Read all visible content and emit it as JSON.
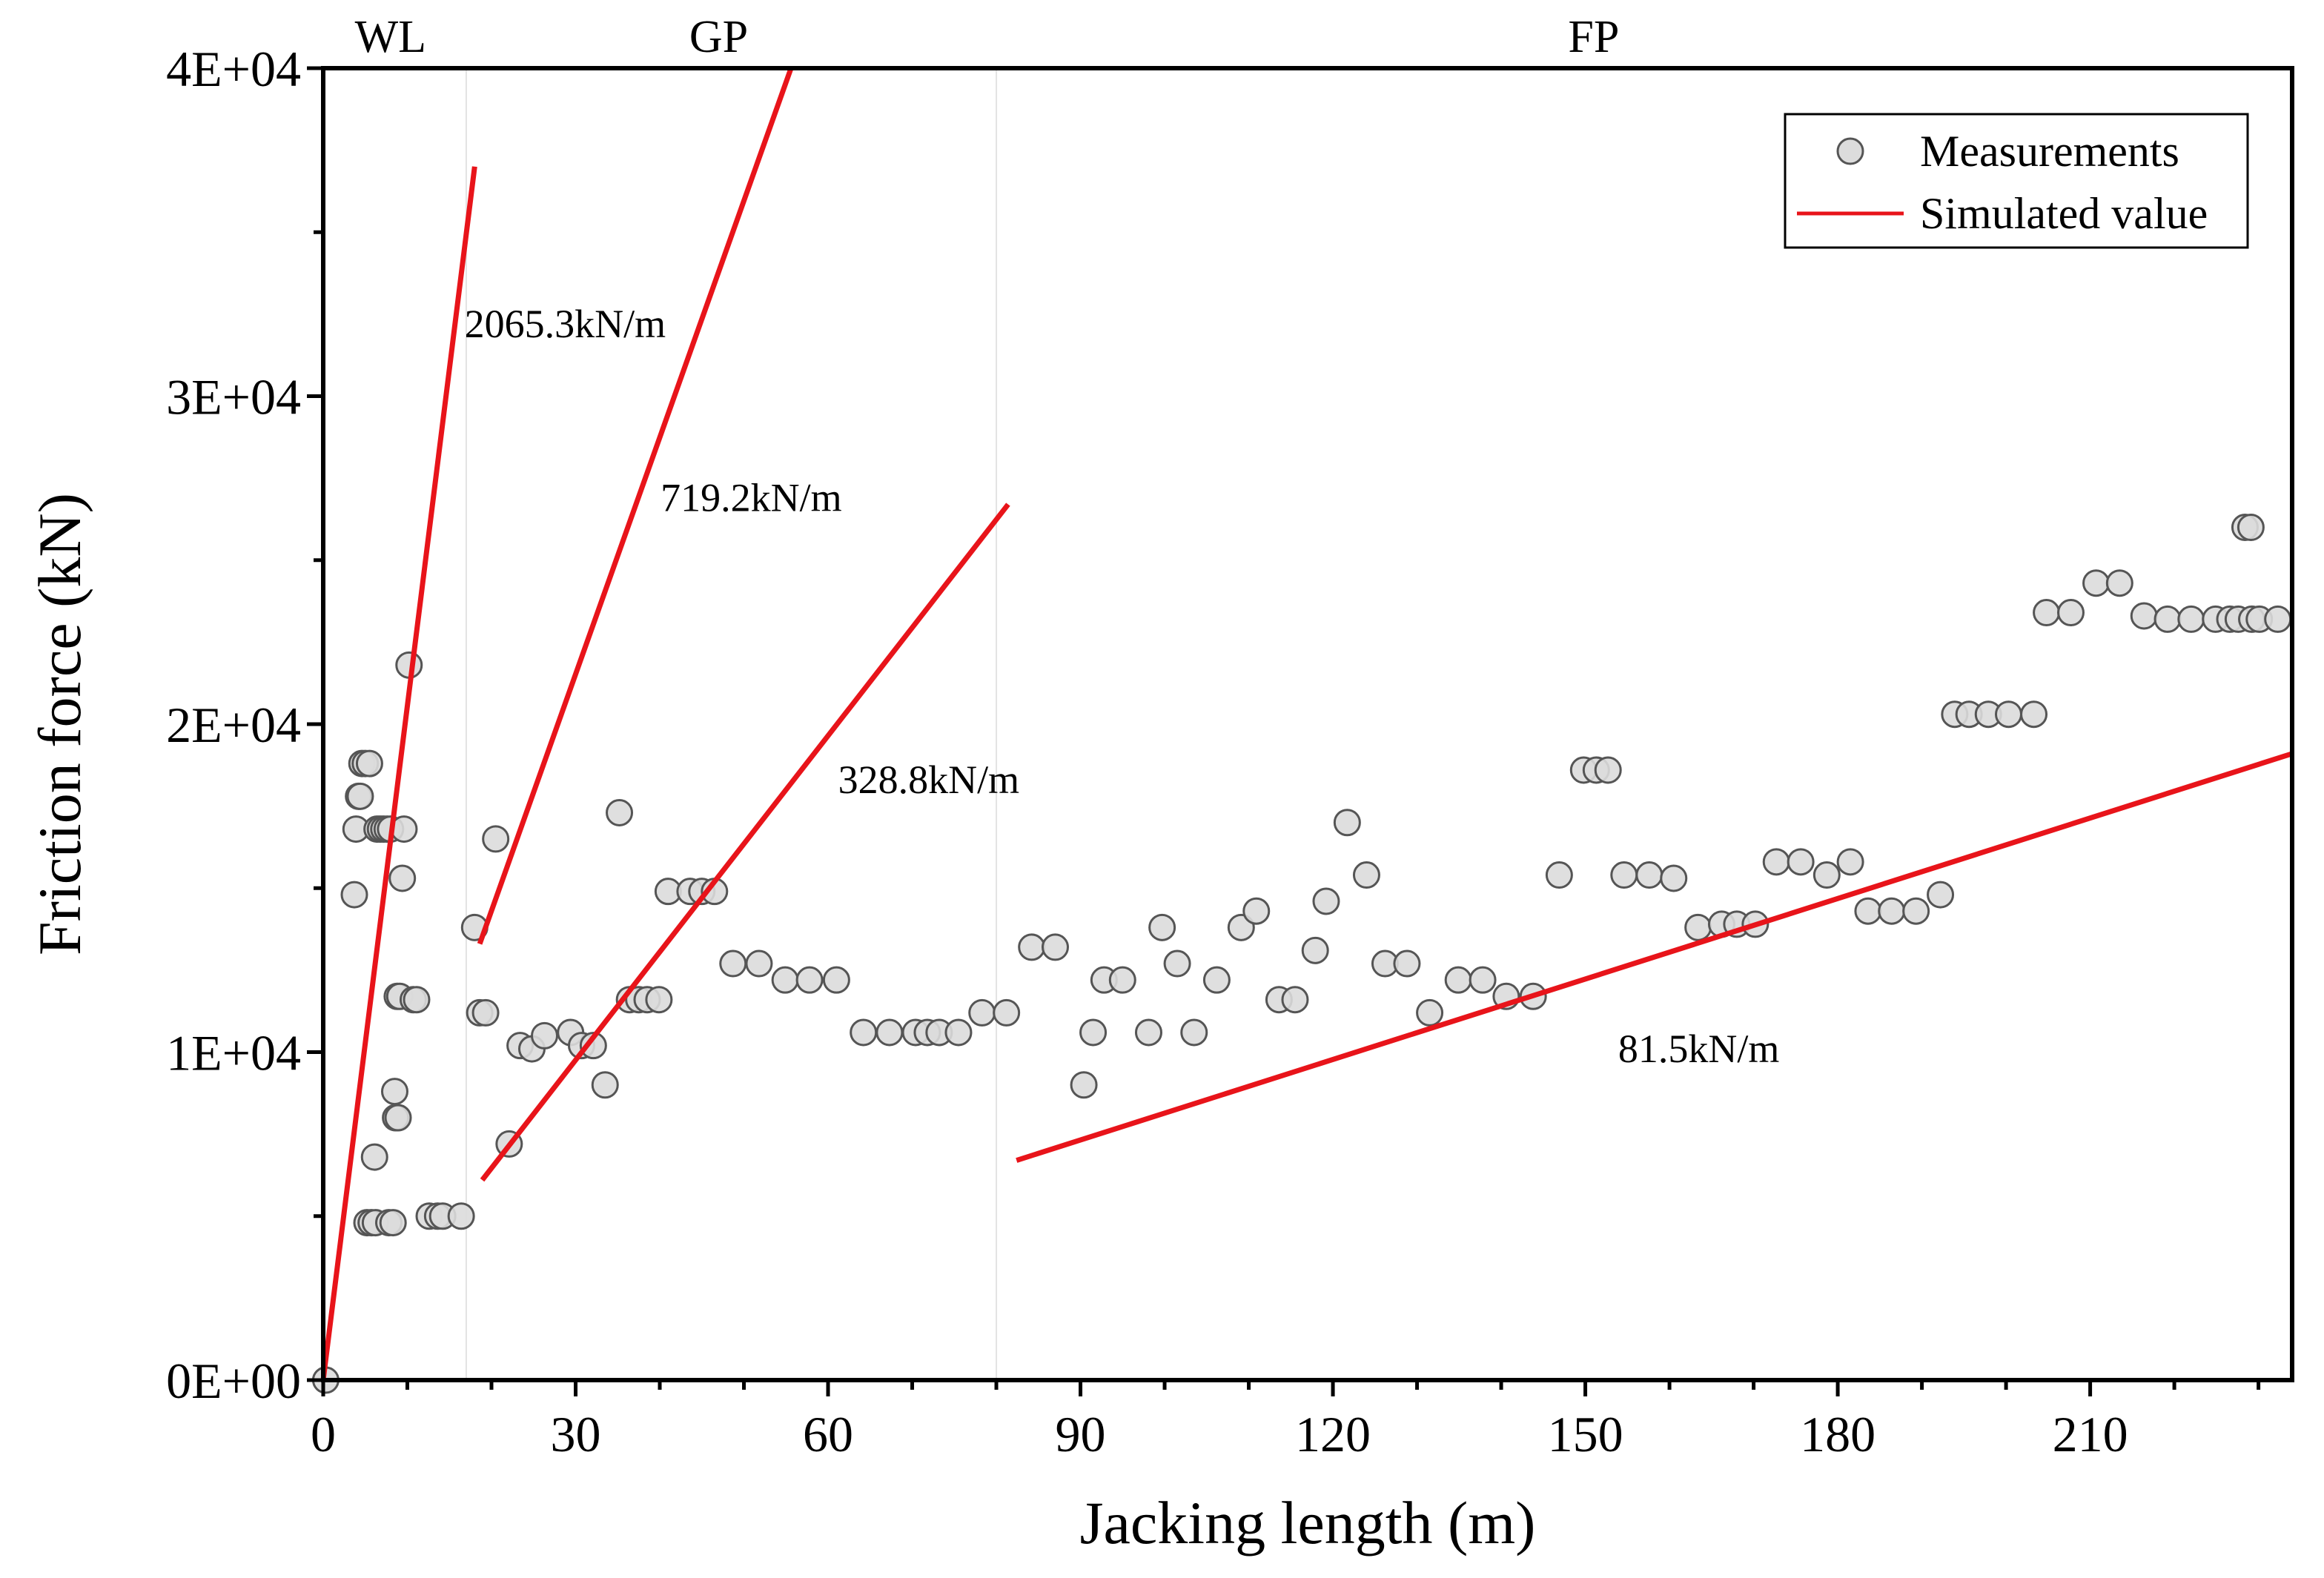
{
  "chart_data": {
    "type": "scatter",
    "title": "",
    "xlabel": "Jacking length (m)",
    "ylabel": "Friction force (kN)",
    "xlim": [
      0,
      234
    ],
    "ylim": [
      0,
      40000
    ],
    "x_ticks": [
      0,
      30,
      60,
      90,
      120,
      150,
      180,
      210
    ],
    "x_tick_labels": [
      "0",
      "30",
      "60",
      "90",
      "120",
      "150",
      "180",
      "210"
    ],
    "y_ticks": [
      0,
      10000,
      20000,
      30000,
      40000
    ],
    "y_tick_labels": [
      "0E+00",
      "1E+04",
      "2E+04",
      "3E+04",
      "4E+04"
    ],
    "x_minor_step": 10,
    "y_minor_step": 5000,
    "grid": false,
    "region_dividers_x": [
      17,
      80
    ],
    "regions": [
      {
        "label": "WL",
        "x": 8
      },
      {
        "label": "GP",
        "x": 47
      },
      {
        "label": "FP",
        "x": 151
      }
    ],
    "legend": {
      "position": "top-right",
      "entries": [
        {
          "label": "Measurements",
          "kind": "marker"
        },
        {
          "label": "Simulated value",
          "kind": "line"
        }
      ]
    },
    "colors": {
      "marker_fill": "#dcdcdc",
      "marker_edge": "#555555",
      "line": "#e8141a",
      "divider": "#e3e3e3"
    },
    "series": [
      {
        "name": "Measurements",
        "kind": "scatter",
        "points": [
          [
            0.3,
            0
          ],
          [
            3.7,
            14800
          ],
          [
            3.9,
            16800
          ],
          [
            4.2,
            17800
          ],
          [
            4.4,
            17800
          ],
          [
            4.6,
            18800
          ],
          [
            5.0,
            18800
          ],
          [
            5.5,
            18800
          ],
          [
            5.2,
            4800
          ],
          [
            5.7,
            4800
          ],
          [
            6.2,
            4800
          ],
          [
            6.1,
            6800
          ],
          [
            6.4,
            16800
          ],
          [
            6.8,
            16800
          ],
          [
            7.2,
            16800
          ],
          [
            7.6,
            16800
          ],
          [
            8.0,
            16800
          ],
          [
            7.8,
            4800
          ],
          [
            8.3,
            4800
          ],
          [
            8.5,
            8800
          ],
          [
            8.6,
            8000
          ],
          [
            8.9,
            8000
          ],
          [
            8.8,
            11700
          ],
          [
            9.1,
            11700
          ],
          [
            9.4,
            15300
          ],
          [
            9.6,
            16800
          ],
          [
            10.2,
            21800
          ],
          [
            10.7,
            11600
          ],
          [
            11.1,
            11600
          ],
          [
            12.6,
            5000
          ],
          [
            13.6,
            5000
          ],
          [
            14.2,
            5000
          ],
          [
            16.4,
            5000
          ],
          [
            18.0,
            13800
          ],
          [
            18.6,
            11200
          ],
          [
            19.3,
            11200
          ],
          [
            20.5,
            16500
          ],
          [
            22.1,
            7200
          ],
          [
            23.4,
            10200
          ],
          [
            24.8,
            10100
          ],
          [
            26.3,
            10500
          ],
          [
            29.4,
            10600
          ],
          [
            30.7,
            10200
          ],
          [
            32.1,
            10200
          ],
          [
            33.5,
            9000
          ],
          [
            35.2,
            17300
          ],
          [
            36.4,
            11600
          ],
          [
            37.5,
            11600
          ],
          [
            38.5,
            11600
          ],
          [
            39.9,
            11600
          ],
          [
            41.0,
            14900
          ],
          [
            43.6,
            14900
          ],
          [
            45.0,
            14900
          ],
          [
            46.5,
            14900
          ],
          [
            48.7,
            12700
          ],
          [
            51.8,
            12700
          ],
          [
            54.9,
            12200
          ],
          [
            57.8,
            12200
          ],
          [
            61.0,
            12200
          ],
          [
            64.2,
            10600
          ],
          [
            67.3,
            10600
          ],
          [
            70.4,
            10600
          ],
          [
            71.8,
            10600
          ],
          [
            73.2,
            10600
          ],
          [
            75.5,
            10600
          ],
          [
            78.3,
            11200
          ],
          [
            81.2,
            11200
          ],
          [
            84.2,
            13200
          ],
          [
            87.0,
            13200
          ],
          [
            90.4,
            9000
          ],
          [
            91.5,
            10600
          ],
          [
            92.8,
            12200
          ],
          [
            95.0,
            12200
          ],
          [
            98.1,
            10600
          ],
          [
            99.7,
            13800
          ],
          [
            101.5,
            12700
          ],
          [
            103.5,
            10600
          ],
          [
            106.2,
            12200
          ],
          [
            109.1,
            13800
          ],
          [
            110.9,
            14300
          ],
          [
            113.6,
            11600
          ],
          [
            115.5,
            11600
          ],
          [
            117.9,
            13100
          ],
          [
            119.2,
            14600
          ],
          [
            121.7,
            17000
          ],
          [
            124.0,
            15400
          ],
          [
            126.2,
            12700
          ],
          [
            128.8,
            12700
          ],
          [
            131.5,
            11200
          ],
          [
            134.9,
            12200
          ],
          [
            137.8,
            12200
          ],
          [
            140.6,
            11700
          ],
          [
            143.8,
            11700
          ],
          [
            146.9,
            15400
          ],
          [
            149.8,
            18600
          ],
          [
            151.3,
            18600
          ],
          [
            152.7,
            18600
          ],
          [
            154.6,
            15400
          ],
          [
            157.6,
            15400
          ],
          [
            160.5,
            15300
          ],
          [
            163.4,
            13800
          ],
          [
            166.2,
            13900
          ],
          [
            168.0,
            13900
          ],
          [
            170.2,
            13900
          ],
          [
            172.7,
            15800
          ],
          [
            175.6,
            15800
          ],
          [
            178.7,
            15400
          ],
          [
            181.5,
            15800
          ],
          [
            183.6,
            14300
          ],
          [
            186.4,
            14300
          ],
          [
            189.3,
            14300
          ],
          [
            192.2,
            14800
          ],
          [
            193.9,
            20300
          ],
          [
            195.6,
            20300
          ],
          [
            197.9,
            20300
          ],
          [
            200.3,
            20300
          ],
          [
            203.3,
            20300
          ],
          [
            204.8,
            23400
          ],
          [
            207.7,
            23400
          ],
          [
            210.7,
            24300
          ],
          [
            213.5,
            24300
          ],
          [
            216.4,
            23300
          ],
          [
            219.2,
            23200
          ],
          [
            222.0,
            23200
          ],
          [
            224.9,
            23200
          ],
          [
            226.6,
            23200
          ],
          [
            227.6,
            23200
          ],
          [
            228.4,
            26000
          ],
          [
            229.1,
            26000
          ],
          [
            229.2,
            23200
          ],
          [
            230.1,
            23200
          ],
          [
            232.3,
            23200
          ]
        ]
      },
      {
        "name": "Simulated value",
        "kind": "line",
        "points": [
          [
            0,
            0
          ],
          [
            18,
            37000
          ]
        ]
      },
      {
        "name": "Simulated value",
        "kind": "line",
        "points": [
          [
            18.6,
            13300
          ],
          [
            55.6,
            40000
          ]
        ]
      },
      {
        "name": "Simulated value",
        "kind": "line",
        "points": [
          [
            18.9,
            6100
          ],
          [
            81.4,
            26700
          ]
        ]
      },
      {
        "name": "Simulated value",
        "kind": "line",
        "points": [
          [
            82.4,
            6700
          ],
          [
            234,
            19100
          ]
        ]
      }
    ],
    "annotations": [
      {
        "text": "2065.3kN/m",
        "x": 16.8,
        "y": 32200
      },
      {
        "text": "719.2kN/m",
        "x": 40.1,
        "y": 26900
      },
      {
        "text": "328.8kN/m",
        "x": 61.2,
        "y": 18300
      },
      {
        "text": "81.5kN/m",
        "x": 153.9,
        "y": 10100
      }
    ]
  }
}
